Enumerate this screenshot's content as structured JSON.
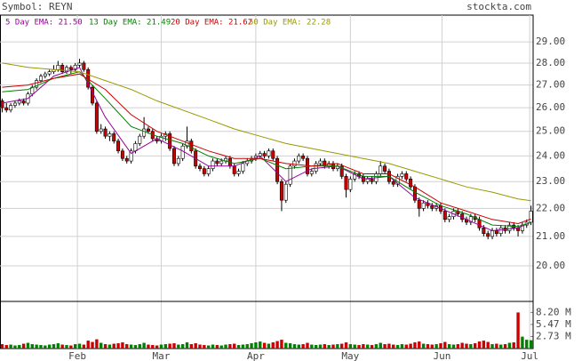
{
  "chart_data": {
    "type": "candlestick",
    "title": "Symbol: REYN",
    "source": "stockta.com",
    "log_scale": true,
    "grid": true,
    "up_color": "#ffffff",
    "down_color": "#cc0000",
    "volume_up_color": "#008000",
    "volume_down_color": "#cc0000",
    "xlim": [
      -0.5,
      123.5
    ],
    "xticks": [
      {
        "value": 17.5,
        "label": "Feb"
      },
      {
        "value": 37,
        "label": "Mar"
      },
      {
        "value": 59,
        "label": "Apr"
      },
      {
        "value": 81,
        "label": "May"
      },
      {
        "value": 102.3,
        "label": "Jun"
      },
      {
        "value": 122.7,
        "label": "Jul"
      }
    ],
    "ylim": [
      18.88,
      30.32
    ],
    "yticks": [
      {
        "value": 20,
        "label": "20.00"
      },
      {
        "value": 21,
        "label": "21.00"
      },
      {
        "value": 22,
        "label": "22.00"
      },
      {
        "value": 23,
        "label": "23.00"
      },
      {
        "value": 24,
        "label": "24.00"
      },
      {
        "value": 25,
        "label": "25.00"
      },
      {
        "value": 26,
        "label": "26.00"
      },
      {
        "value": 27,
        "label": "27.00"
      },
      {
        "value": 28,
        "label": "28.00"
      },
      {
        "value": 29,
        "label": "29.00"
      }
    ],
    "ohlc": [
      [
        26.3,
        26.4,
        25.8,
        26.0
      ],
      [
        26.0,
        26.2,
        25.8,
        25.9
      ],
      [
        25.9,
        26.2,
        25.8,
        26.1
      ],
      [
        26.1,
        26.3,
        26.0,
        26.2
      ],
      [
        26.2,
        26.4,
        26.1,
        26.3
      ],
      [
        26.3,
        26.4,
        26.1,
        26.2
      ],
      [
        26.2,
        26.7,
        26.1,
        26.6
      ],
      [
        26.6,
        27.0,
        26.5,
        26.9
      ],
      [
        26.9,
        27.3,
        26.8,
        27.2
      ],
      [
        27.2,
        27.5,
        27.1,
        27.4
      ],
      [
        27.4,
        27.6,
        27.3,
        27.5
      ],
      [
        27.5,
        27.7,
        27.4,
        27.6
      ],
      [
        27.6,
        27.9,
        27.5,
        27.7
      ],
      [
        27.7,
        28.1,
        27.6,
        27.9
      ],
      [
        27.9,
        28.0,
        27.5,
        27.6
      ],
      [
        27.6,
        27.9,
        27.5,
        27.8
      ],
      [
        27.8,
        27.9,
        27.5,
        27.7
      ],
      [
        27.7,
        28.0,
        27.6,
        27.9
      ],
      [
        27.9,
        28.2,
        27.8,
        28.0
      ],
      [
        28.0,
        28.1,
        27.6,
        27.7
      ],
      [
        27.7,
        27.8,
        26.8,
        26.9
      ],
      [
        26.9,
        27.0,
        26.1,
        26.2
      ],
      [
        26.2,
        26.3,
        24.9,
        25.0
      ],
      [
        25.0,
        25.3,
        24.9,
        25.1
      ],
      [
        25.1,
        25.2,
        24.7,
        24.8
      ],
      [
        24.8,
        25.0,
        24.6,
        24.9
      ],
      [
        24.9,
        25.0,
        24.5,
        24.6
      ],
      [
        24.6,
        24.7,
        24.1,
        24.2
      ],
      [
        24.2,
        24.3,
        23.8,
        23.9
      ],
      [
        23.9,
        24.0,
        23.7,
        23.8
      ],
      [
        23.8,
        24.3,
        23.7,
        24.2
      ],
      [
        24.2,
        24.6,
        24.1,
        24.5
      ],
      [
        24.5,
        24.9,
        24.4,
        24.8
      ],
      [
        24.8,
        25.6,
        24.7,
        25.1
      ],
      [
        25.1,
        25.2,
        24.9,
        25.0
      ],
      [
        25.0,
        25.1,
        24.6,
        24.7
      ],
      [
        24.7,
        24.8,
        24.5,
        24.6
      ],
      [
        24.6,
        24.9,
        24.5,
        24.8
      ],
      [
        24.8,
        25.0,
        24.6,
        24.9
      ],
      [
        24.9,
        25.0,
        24.2,
        24.3
      ],
      [
        24.3,
        24.4,
        23.6,
        23.7
      ],
      [
        23.7,
        24.0,
        23.6,
        23.9
      ],
      [
        23.9,
        24.5,
        23.8,
        24.4
      ],
      [
        24.4,
        25.2,
        24.3,
        24.6
      ],
      [
        24.6,
        24.7,
        24.1,
        24.2
      ],
      [
        24.2,
        24.3,
        23.5,
        23.6
      ],
      [
        23.6,
        23.7,
        23.4,
        23.5
      ],
      [
        23.5,
        23.6,
        23.2,
        23.3
      ],
      [
        23.3,
        23.6,
        23.2,
        23.5
      ],
      [
        23.5,
        23.9,
        23.4,
        23.8
      ],
      [
        23.8,
        23.9,
        23.6,
        23.7
      ],
      [
        23.7,
        23.9,
        23.6,
        23.8
      ],
      [
        23.8,
        24.0,
        23.7,
        23.9
      ],
      [
        23.9,
        24.0,
        23.5,
        23.6
      ],
      [
        23.6,
        23.7,
        23.2,
        23.3
      ],
      [
        23.3,
        23.5,
        23.2,
        23.4
      ],
      [
        23.4,
        23.8,
        23.3,
        23.7
      ],
      [
        23.7,
        23.9,
        23.6,
        23.8
      ],
      [
        23.8,
        24.0,
        23.7,
        23.9
      ],
      [
        23.9,
        24.1,
        23.8,
        24.0
      ],
      [
        24.0,
        24.2,
        23.9,
        24.1
      ],
      [
        24.1,
        24.2,
        23.9,
        24.0
      ],
      [
        24.0,
        24.3,
        23.9,
        24.2
      ],
      [
        24.2,
        24.3,
        23.8,
        23.9
      ],
      [
        23.9,
        24.0,
        22.9,
        23.0
      ],
      [
        23.0,
        23.1,
        21.9,
        22.3
      ],
      [
        22.3,
        23.0,
        22.2,
        22.9
      ],
      [
        22.9,
        23.7,
        22.8,
        23.6
      ],
      [
        23.6,
        23.9,
        23.5,
        23.8
      ],
      [
        23.8,
        24.1,
        23.7,
        24.0
      ],
      [
        24.0,
        24.1,
        23.8,
        23.9
      ],
      [
        23.9,
        24.0,
        23.2,
        23.3
      ],
      [
        23.3,
        23.5,
        23.2,
        23.4
      ],
      [
        23.4,
        23.8,
        23.3,
        23.7
      ],
      [
        23.7,
        23.9,
        23.6,
        23.8
      ],
      [
        23.8,
        23.9,
        23.5,
        23.6
      ],
      [
        23.6,
        23.8,
        23.5,
        23.7
      ],
      [
        23.7,
        23.8,
        23.4,
        23.5
      ],
      [
        23.5,
        23.7,
        23.4,
        23.6
      ],
      [
        23.6,
        23.7,
        23.1,
        23.2
      ],
      [
        23.2,
        23.3,
        22.4,
        22.7
      ],
      [
        22.7,
        23.2,
        22.6,
        23.1
      ],
      [
        23.1,
        23.4,
        23.0,
        23.3
      ],
      [
        23.3,
        23.4,
        23.1,
        23.2
      ],
      [
        23.2,
        23.3,
        22.9,
        23.0
      ],
      [
        23.0,
        23.2,
        22.9,
        23.1
      ],
      [
        23.1,
        23.2,
        22.9,
        23.0
      ],
      [
        23.0,
        23.4,
        22.9,
        23.3
      ],
      [
        23.3,
        23.8,
        23.2,
        23.6
      ],
      [
        23.6,
        23.7,
        23.3,
        23.4
      ],
      [
        23.4,
        23.5,
        22.9,
        23.0
      ],
      [
        23.0,
        23.1,
        22.8,
        22.9
      ],
      [
        22.9,
        23.3,
        22.8,
        23.2
      ],
      [
        23.2,
        23.4,
        23.1,
        23.3
      ],
      [
        23.3,
        23.4,
        23.0,
        23.1
      ],
      [
        23.1,
        23.2,
        22.7,
        22.8
      ],
      [
        22.8,
        22.9,
        22.2,
        22.3
      ],
      [
        22.3,
        22.4,
        21.7,
        22.0
      ],
      [
        22.0,
        22.3,
        21.9,
        22.2
      ],
      [
        22.2,
        22.3,
        22.0,
        22.1
      ],
      [
        22.1,
        22.2,
        21.9,
        22.0
      ],
      [
        22.0,
        22.2,
        21.9,
        22.1
      ],
      [
        22.1,
        22.2,
        21.8,
        21.9
      ],
      [
        21.9,
        22.0,
        21.5,
        21.6
      ],
      [
        21.6,
        21.8,
        21.5,
        21.7
      ],
      [
        21.7,
        22.0,
        21.6,
        21.9
      ],
      [
        21.9,
        22.0,
        21.7,
        21.8
      ],
      [
        21.8,
        21.9,
        21.5,
        21.6
      ],
      [
        21.6,
        21.7,
        21.4,
        21.5
      ],
      [
        21.5,
        21.8,
        21.4,
        21.7
      ],
      [
        21.7,
        21.8,
        21.5,
        21.6
      ],
      [
        21.6,
        21.7,
        21.2,
        21.3
      ],
      [
        21.3,
        21.4,
        21.0,
        21.1
      ],
      [
        21.1,
        21.2,
        20.9,
        21.0
      ],
      [
        21.0,
        21.3,
        20.9,
        21.2
      ],
      [
        21.2,
        21.3,
        21.0,
        21.1
      ],
      [
        21.1,
        21.4,
        21.0,
        21.3
      ],
      [
        21.3,
        21.4,
        21.1,
        21.2
      ],
      [
        21.2,
        21.5,
        21.1,
        21.4
      ],
      [
        21.4,
        21.5,
        21.2,
        21.3
      ],
      [
        21.3,
        21.4,
        21.0,
        21.2
      ],
      [
        21.2,
        21.5,
        21.1,
        21.4
      ],
      [
        21.4,
        21.6,
        21.3,
        21.5
      ],
      [
        21.5,
        22.1,
        21.4,
        21.9
      ]
    ],
    "volume": {
      "y2lim": [
        0,
        10.5
      ],
      "y2ticks": [
        {
          "value": 2.73,
          "label": "2.73 M"
        },
        {
          "value": 5.47,
          "label": "5.47 M"
        },
        {
          "value": 8.2,
          "label": "8.20 M"
        }
      ],
      "values": [
        1.0,
        0.8,
        0.9,
        0.7,
        0.8,
        1.1,
        1.3,
        1.0,
        0.9,
        0.8,
        0.7,
        0.9,
        1.0,
        1.2,
        0.9,
        0.8,
        0.7,
        1.0,
        1.1,
        0.9,
        1.8,
        1.5,
        2.1,
        1.3,
        1.0,
        0.9,
        1.1,
        1.2,
        1.4,
        1.0,
        0.9,
        0.8,
        1.0,
        1.3,
        0.9,
        0.8,
        0.7,
        0.9,
        1.0,
        1.1,
        1.2,
        0.9,
        1.0,
        1.4,
        1.0,
        1.2,
        0.9,
        0.8,
        0.7,
        0.9,
        0.8,
        0.7,
        0.9,
        1.0,
        1.1,
        0.8,
        0.9,
        1.0,
        1.2,
        1.4,
        1.6,
        1.3,
        1.1,
        1.4,
        1.7,
        2.0,
        1.3,
        1.2,
        1.0,
        0.9,
        1.0,
        1.3,
        0.9,
        0.8,
        0.9,
        1.0,
        0.8,
        0.9,
        1.0,
        1.1,
        1.4,
        1.0,
        0.9,
        0.8,
        1.0,
        0.9,
        0.8,
        1.0,
        1.3,
        1.0,
        1.1,
        0.9,
        0.8,
        1.0,
        0.9,
        1.1,
        1.4,
        1.6,
        1.1,
        1.0,
        0.9,
        1.0,
        1.2,
        1.5,
        1.0,
        0.9,
        1.0,
        1.3,
        1.1,
        1.0,
        1.2,
        1.6,
        1.8,
        1.5,
        1.0,
        1.1,
        0.9,
        1.0,
        1.3,
        1.4,
        8.2,
        2.7,
        2.0,
        1.9
      ]
    },
    "ema_x": [
      0,
      6,
      12,
      18,
      24,
      30,
      36,
      42,
      48,
      54,
      60,
      66,
      72,
      78,
      84,
      90,
      96,
      102,
      108,
      114,
      120,
      123
    ],
    "series": [
      {
        "name": "5 Day EMA: 21.50",
        "color": "#990099",
        "values": [
          26.2,
          26.4,
          27.4,
          27.8,
          25.6,
          24.1,
          24.7,
          24.2,
          23.6,
          23.6,
          24.0,
          23.0,
          23.5,
          23.6,
          23.1,
          23.2,
          22.4,
          22.0,
          21.6,
          21.2,
          21.3,
          21.5
        ]
      },
      {
        "name": "13 Day EMA: 21.49",
        "color": "#008000",
        "values": [
          26.7,
          26.8,
          27.3,
          27.6,
          26.4,
          25.2,
          24.8,
          24.5,
          24.0,
          23.7,
          23.9,
          23.5,
          23.6,
          23.6,
          23.2,
          23.2,
          22.6,
          22.1,
          21.8,
          21.4,
          21.35,
          21.49
        ]
      },
      {
        "name": "20 Day EMA: 21.62",
        "color": "#cc0000",
        "values": [
          26.9,
          27.0,
          27.3,
          27.5,
          26.8,
          25.7,
          25.0,
          24.6,
          24.2,
          23.9,
          23.9,
          23.7,
          23.6,
          23.7,
          23.3,
          23.3,
          22.8,
          22.2,
          21.9,
          21.6,
          21.45,
          21.62
        ]
      },
      {
        "name": "50 Day EMA: 22.28",
        "color": "#999900",
        "values": [
          28.0,
          27.8,
          27.7,
          27.6,
          27.2,
          26.8,
          26.3,
          25.9,
          25.5,
          25.1,
          24.8,
          24.5,
          24.3,
          24.1,
          23.9,
          23.7,
          23.4,
          23.1,
          22.8,
          22.6,
          22.35,
          22.28
        ]
      }
    ]
  }
}
